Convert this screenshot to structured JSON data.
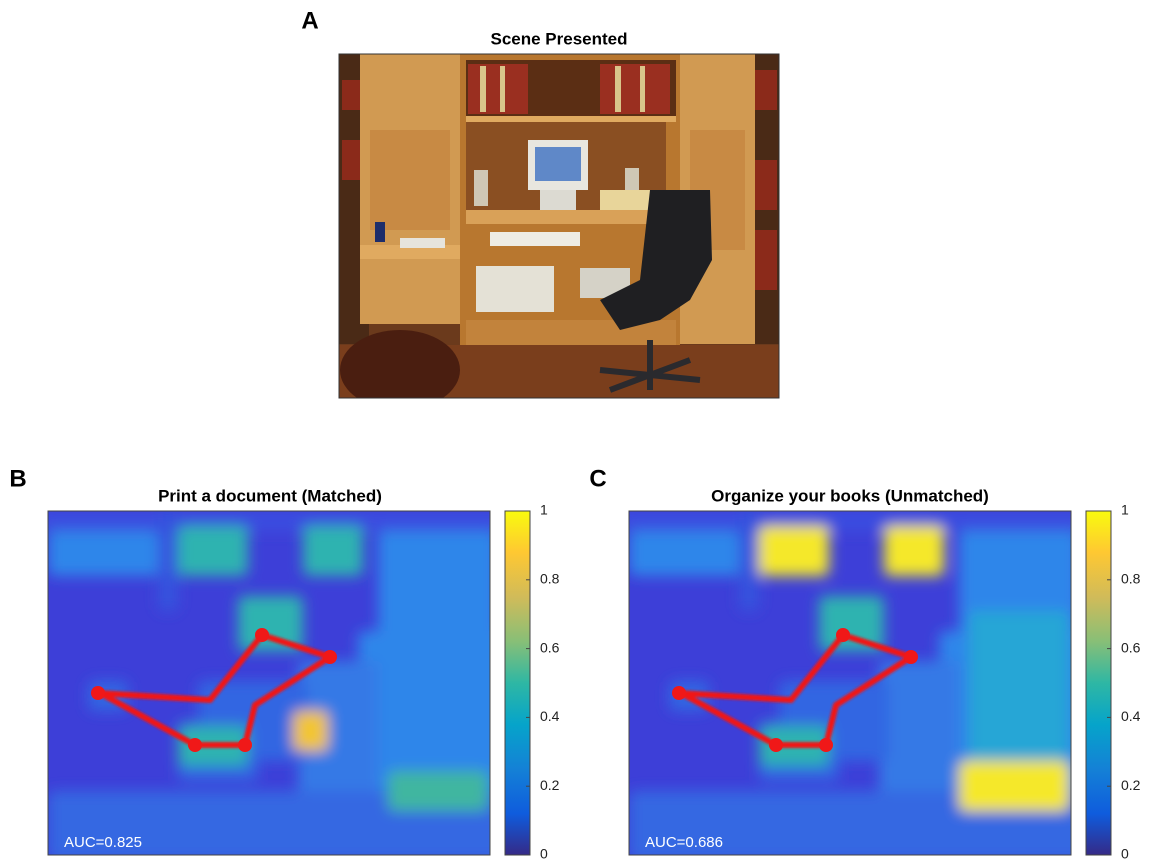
{
  "panels": [
    {
      "letter": "A",
      "title": "Scene Presented"
    },
    {
      "letter": "B",
      "title": "Print a document (Matched)",
      "annotation": "AUC=0.825",
      "colorbar": {
        "lim": [
          0,
          1
        ],
        "ticks": [
          0,
          0.2,
          0.4,
          0.6,
          0.8,
          1
        ]
      }
    },
    {
      "letter": "C",
      "title": "Organize your books (Unmatched)",
      "annotation": "AUC=0.686",
      "colorbar": {
        "lim": [
          0,
          1
        ],
        "ticks": [
          0,
          0.2,
          0.4,
          0.6,
          0.8,
          1
        ]
      }
    }
  ]
}
